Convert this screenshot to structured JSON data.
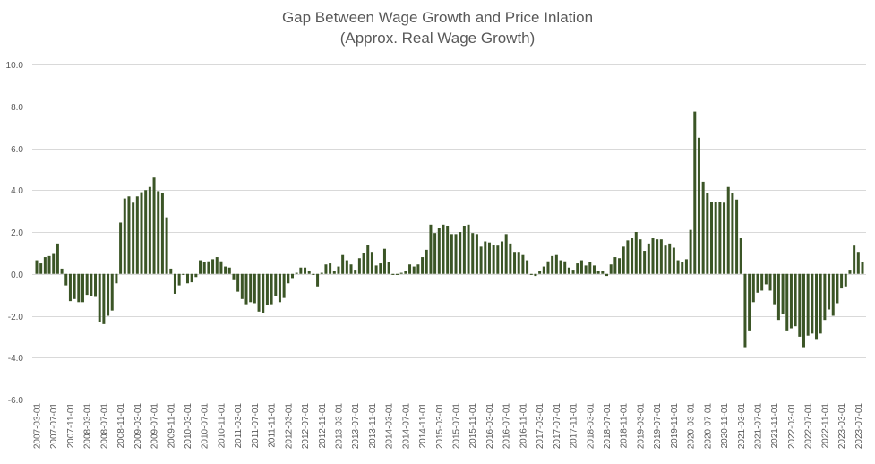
{
  "chart_data": {
    "type": "bar",
    "title": "Gap Between Wage Growth and Price Inlation",
    "subtitle": "(Approx. Real Wage Growth)",
    "xlabel": "",
    "ylabel": "",
    "ylim": [
      -6,
      10
    ],
    "yticks": [
      "10.0",
      "8.0",
      "6.0",
      "4.0",
      "2.0",
      "0.0",
      "-2.0",
      "-4.0",
      "-6.0"
    ],
    "ytick_values": [
      10,
      8,
      6,
      4,
      2,
      0,
      -2,
      -4,
      -6
    ],
    "xtick_every": 4,
    "grid": "horizontal",
    "legend": "none",
    "bar_color": "#3b5526",
    "grid_color": "#d9d9d9",
    "categories": [
      "2007-03-01",
      "2007-04-01",
      "2007-05-01",
      "2007-06-01",
      "2007-07-01",
      "2007-08-01",
      "2007-09-01",
      "2007-10-01",
      "2007-11-01",
      "2007-12-01",
      "2008-01-01",
      "2008-02-01",
      "2008-03-01",
      "2008-04-01",
      "2008-05-01",
      "2008-06-01",
      "2008-07-01",
      "2008-08-01",
      "2008-09-01",
      "2008-10-01",
      "2008-11-01",
      "2008-12-01",
      "2009-01-01",
      "2009-02-01",
      "2009-03-01",
      "2009-04-01",
      "2009-05-01",
      "2009-06-01",
      "2009-07-01",
      "2009-08-01",
      "2009-09-01",
      "2009-10-01",
      "2009-11-01",
      "2009-12-01",
      "2010-01-01",
      "2010-02-01",
      "2010-03-01",
      "2010-04-01",
      "2010-05-01",
      "2010-06-01",
      "2010-07-01",
      "2010-08-01",
      "2010-09-01",
      "2010-10-01",
      "2010-11-01",
      "2010-12-01",
      "2011-01-01",
      "2011-02-01",
      "2011-03-01",
      "2011-04-01",
      "2011-05-01",
      "2011-06-01",
      "2011-07-01",
      "2011-08-01",
      "2011-09-01",
      "2011-10-01",
      "2011-11-01",
      "2011-12-01",
      "2012-01-01",
      "2012-02-01",
      "2012-03-01",
      "2012-04-01",
      "2012-05-01",
      "2012-06-01",
      "2012-07-01",
      "2012-08-01",
      "2012-09-01",
      "2012-10-01",
      "2012-11-01",
      "2012-12-01",
      "2013-01-01",
      "2013-02-01",
      "2013-03-01",
      "2013-04-01",
      "2013-05-01",
      "2013-06-01",
      "2013-07-01",
      "2013-08-01",
      "2013-09-01",
      "2013-10-01",
      "2013-11-01",
      "2013-12-01",
      "2014-01-01",
      "2014-02-01",
      "2014-03-01",
      "2014-04-01",
      "2014-05-01",
      "2014-06-01",
      "2014-07-01",
      "2014-08-01",
      "2014-09-01",
      "2014-10-01",
      "2014-11-01",
      "2014-12-01",
      "2015-01-01",
      "2015-02-01",
      "2015-03-01",
      "2015-04-01",
      "2015-05-01",
      "2015-06-01",
      "2015-07-01",
      "2015-08-01",
      "2015-09-01",
      "2015-10-01",
      "2015-11-01",
      "2015-12-01",
      "2016-01-01",
      "2016-02-01",
      "2016-03-01",
      "2016-04-01",
      "2016-05-01",
      "2016-06-01",
      "2016-07-01",
      "2016-08-01",
      "2016-09-01",
      "2016-10-01",
      "2016-11-01",
      "2016-12-01",
      "2017-01-01",
      "2017-02-01",
      "2017-03-01",
      "2017-04-01",
      "2017-05-01",
      "2017-06-01",
      "2017-07-01",
      "2017-08-01",
      "2017-09-01",
      "2017-10-01",
      "2017-11-01",
      "2017-12-01",
      "2018-01-01",
      "2018-02-01",
      "2018-03-01",
      "2018-04-01",
      "2018-05-01",
      "2018-06-01",
      "2018-07-01",
      "2018-08-01",
      "2018-09-01",
      "2018-10-01",
      "2018-11-01",
      "2018-12-01",
      "2019-01-01",
      "2019-02-01",
      "2019-03-01",
      "2019-04-01",
      "2019-05-01",
      "2019-06-01",
      "2019-07-01",
      "2019-08-01",
      "2019-09-01",
      "2019-10-01",
      "2019-11-01",
      "2019-12-01",
      "2020-01-01",
      "2020-02-01",
      "2020-03-01",
      "2020-04-01",
      "2020-05-01",
      "2020-06-01",
      "2020-07-01",
      "2020-08-01",
      "2020-09-01",
      "2020-10-01",
      "2020-11-01",
      "2020-12-01",
      "2021-01-01",
      "2021-02-01",
      "2021-03-01",
      "2021-04-01",
      "2021-05-01",
      "2021-06-01",
      "2021-07-01",
      "2021-08-01",
      "2021-09-01",
      "2021-10-01",
      "2021-11-01",
      "2021-12-01",
      "2022-01-01",
      "2022-02-01",
      "2022-03-01",
      "2022-04-01",
      "2022-05-01",
      "2022-06-01",
      "2022-07-01",
      "2022-08-01",
      "2022-09-01",
      "2022-10-01",
      "2022-11-01",
      "2022-12-01",
      "2023-01-01",
      "2023-02-01",
      "2023-03-01",
      "2023-04-01",
      "2023-05-01",
      "2023-06-01",
      "2023-07-01",
      "2023-08-01"
    ],
    "values": [
      0.65,
      0.5,
      0.8,
      0.85,
      0.95,
      1.45,
      0.25,
      -0.55,
      -1.3,
      -1.2,
      -1.35,
      -1.35,
      -1.0,
      -1.05,
      -1.1,
      -2.3,
      -2.4,
      -2.0,
      -1.75,
      -0.45,
      2.45,
      3.6,
      3.7,
      3.4,
      3.7,
      3.9,
      4.0,
      4.15,
      4.6,
      3.95,
      3.85,
      2.7,
      0.25,
      -0.95,
      -0.55,
      -0.05,
      -0.45,
      -0.4,
      -0.15,
      0.65,
      0.55,
      0.6,
      0.7,
      0.8,
      0.6,
      0.35,
      0.3,
      -0.3,
      -0.85,
      -1.2,
      -1.45,
      -1.35,
      -1.4,
      -1.8,
      -1.85,
      -1.5,
      -1.45,
      -1.05,
      -1.35,
      -1.15,
      -0.45,
      -0.2,
      0.05,
      0.3,
      0.3,
      0.15,
      -0.05,
      -0.6,
      0.05,
      0.45,
      0.5,
      0.15,
      0.35,
      0.9,
      0.65,
      0.45,
      0.2,
      0.75,
      1.0,
      1.4,
      1.05,
      0.4,
      0.5,
      1.2,
      0.55,
      -0.05,
      -0.05,
      0.05,
      0.15,
      0.45,
      0.35,
      0.45,
      0.8,
      1.15,
      2.35,
      1.95,
      2.2,
      2.35,
      2.3,
      1.9,
      1.9,
      2.0,
      2.3,
      2.35,
      1.95,
      1.9,
      1.3,
      1.55,
      1.5,
      1.4,
      1.35,
      1.55,
      1.9,
      1.45,
      1.05,
      1.05,
      0.9,
      0.65,
      -0.05,
      -0.1,
      0.15,
      0.35,
      0.6,
      0.85,
      0.9,
      0.65,
      0.6,
      0.3,
      0.2,
      0.5,
      0.65,
      0.4,
      0.55,
      0.4,
      0.15,
      0.15,
      -0.1,
      0.45,
      0.8,
      0.75,
      1.3,
      1.6,
      1.7,
      2.0,
      1.65,
      1.1,
      1.45,
      1.7,
      1.65,
      1.65,
      1.35,
      1.45,
      1.25,
      0.65,
      0.55,
      0.7,
      2.1,
      7.75,
      6.5,
      4.4,
      3.85,
      3.45,
      3.45,
      3.45,
      3.4,
      4.15,
      3.85,
      3.55,
      1.7,
      -3.5,
      -2.7,
      -1.35,
      -0.9,
      -0.8,
      -0.5,
      -0.8,
      -1.45,
      -2.2,
      -1.9,
      -2.7,
      -2.6,
      -2.5,
      -3.0,
      -3.5,
      -2.95,
      -2.85,
      -3.15,
      -2.85,
      -2.2,
      -1.7,
      -2.0,
      -1.4,
      -0.7,
      -0.6,
      0.2,
      1.35,
      1.05,
      0.55
    ]
  }
}
